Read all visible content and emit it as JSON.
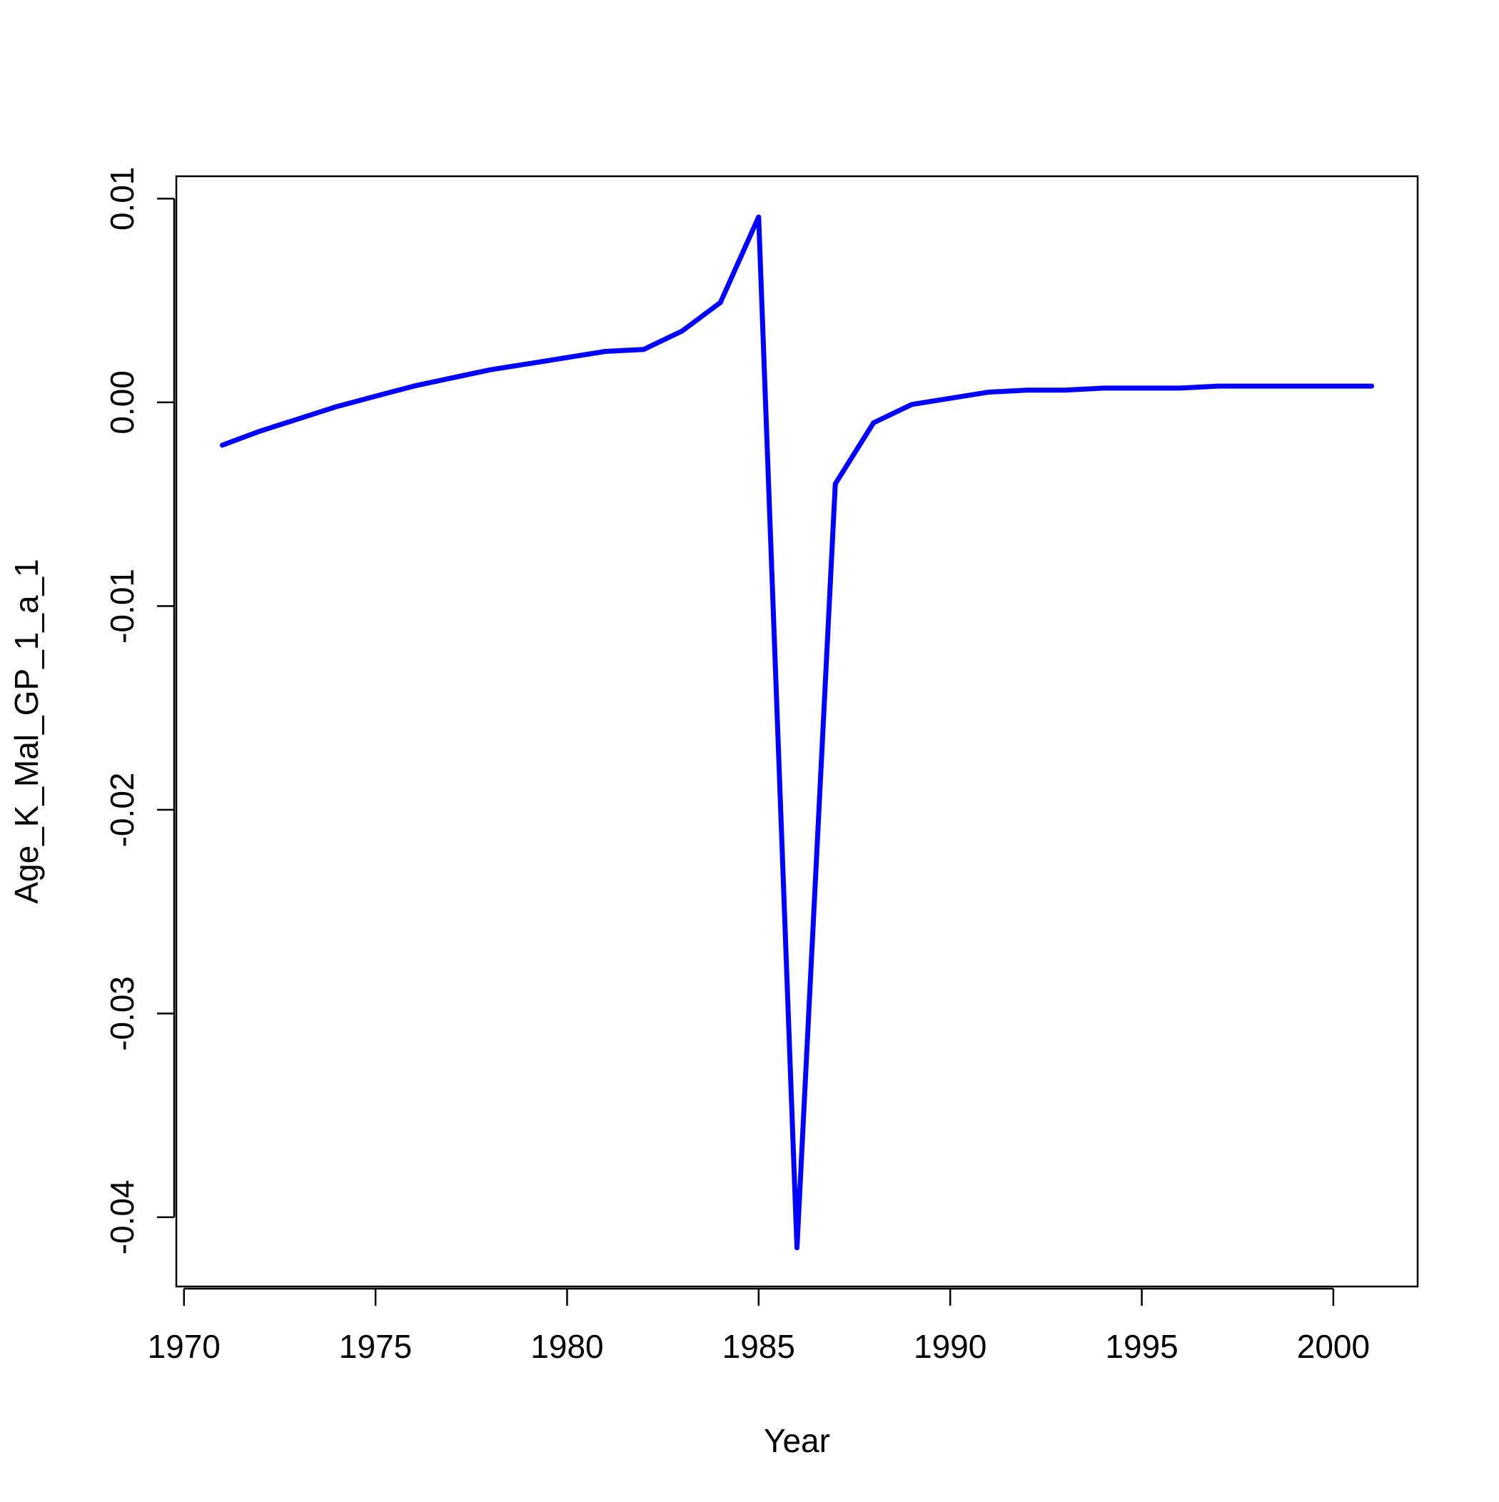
{
  "chart_data": {
    "type": "line",
    "title": "",
    "xlabel": "Year",
    "ylabel": "Age_K_Mal_GP_1_a_1",
    "xlim": [
      1969.8,
      2002.2
    ],
    "ylim": [
      -0.0434,
      0.0111
    ],
    "x_ticks": [
      1970,
      1975,
      1980,
      1985,
      1990,
      1995,
      2000
    ],
    "x_tick_labels": [
      "1970",
      "1975",
      "1980",
      "1985",
      "1990",
      "1995",
      "2000"
    ],
    "y_ticks": [
      0.01,
      0.0,
      -0.01,
      -0.02,
      -0.03,
      -0.04
    ],
    "y_tick_labels": [
      "0.01",
      "0.00",
      "-0.01",
      "-0.02",
      "-0.03",
      "-0.04"
    ],
    "grid": false,
    "line_color": "#0000FF",
    "series": [
      {
        "x": [
          1971,
          1972,
          1973,
          1974,
          1975,
          1976,
          1977,
          1978,
          1979,
          1980,
          1981,
          1982,
          1983,
          1984,
          1985,
          1986,
          1987,
          1988,
          1989,
          1990,
          1991,
          1992,
          1993,
          1994,
          1995,
          1996,
          1997,
          1998,
          1999,
          2000,
          2001
        ],
        "values": [
          -0.0021,
          -0.0014,
          -0.0008,
          -0.0002,
          0.0003,
          0.0008,
          0.0012,
          0.0016,
          0.0019,
          0.0022,
          0.0025,
          0.0026,
          0.0035,
          0.0049,
          0.0091,
          -0.0415,
          -0.004,
          -0.001,
          -0.0001,
          0.0002,
          0.0005,
          0.0006,
          0.0006,
          0.0007,
          0.0007,
          0.0007,
          0.0008,
          0.0008,
          0.0008,
          0.0008,
          0.0008
        ]
      }
    ]
  }
}
